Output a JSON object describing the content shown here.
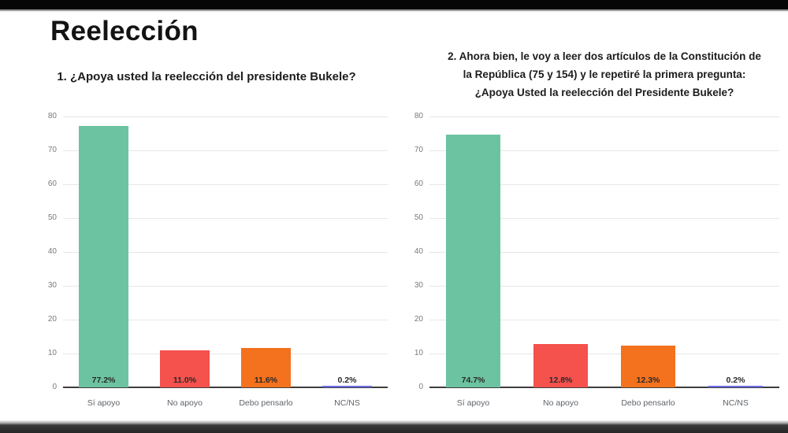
{
  "slide": {
    "title": "Reelección"
  },
  "letterbox": {
    "top_bar_color": "#060606",
    "bottom_bar_color": "#2e2e2e"
  },
  "palette": {
    "si_apoyo": "#6cc3a1",
    "no_apoyo": "#f5514d",
    "debo_pensarlo": "#f4711d",
    "nc_ns": "#6f6ce8",
    "gridline": "#e7e7e7",
    "axis": "#3d3d3d"
  },
  "chart_data": [
    {
      "type": "bar",
      "title": "1. ¿Apoya usted la reelección del presidente Bukele?",
      "title_lines": [
        "1. ¿Apoya usted la reelección del presidente Bukele?"
      ],
      "categories": [
        "Sí apoyo",
        "No apoyo",
        "Debo pensarlo",
        "NC/NS"
      ],
      "values": [
        77.2,
        11.0,
        11.6,
        0.2
      ],
      "value_labels": [
        "77.2%",
        "11.0%",
        "11.6%",
        "0.2%"
      ],
      "bar_colors": [
        "#6cc3a1",
        "#f5514d",
        "#f4711d",
        "#6f6ce8"
      ],
      "xlabel": "",
      "ylabel": "",
      "ylim": [
        0,
        80
      ],
      "y_ticks": [
        0,
        10,
        20,
        30,
        40,
        50,
        60,
        70,
        80
      ],
      "grid": true,
      "legend": "none"
    },
    {
      "type": "bar",
      "title": "2. Ahora bien, le voy a leer dos artículos de la Constitución de la República (75 y 154) y le repetiré la primera pregunta: ¿Apoya Usted la reelección del Presidente Bukele?",
      "title_lines": [
        "2. Ahora bien, le voy a leer dos artículos de la Constitución de",
        "la República (75 y 154) y le repetiré la primera pregunta:",
        "¿Apoya Usted la reelección del Presidente Bukele?"
      ],
      "categories": [
        "Sí apoyo",
        "No apoyo",
        "Debo pensarlo",
        "NC/NS"
      ],
      "values": [
        74.7,
        12.8,
        12.3,
        0.2
      ],
      "value_labels": [
        "74.7%",
        "12.8%",
        "12.3%",
        "0.2%"
      ],
      "bar_colors": [
        "#6cc3a1",
        "#f5514d",
        "#f4711d",
        "#6f6ce8"
      ],
      "xlabel": "",
      "ylabel": "",
      "ylim": [
        0,
        80
      ],
      "y_ticks": [
        0,
        10,
        20,
        30,
        40,
        50,
        60,
        70,
        80
      ],
      "grid": true,
      "legend": "none"
    }
  ]
}
